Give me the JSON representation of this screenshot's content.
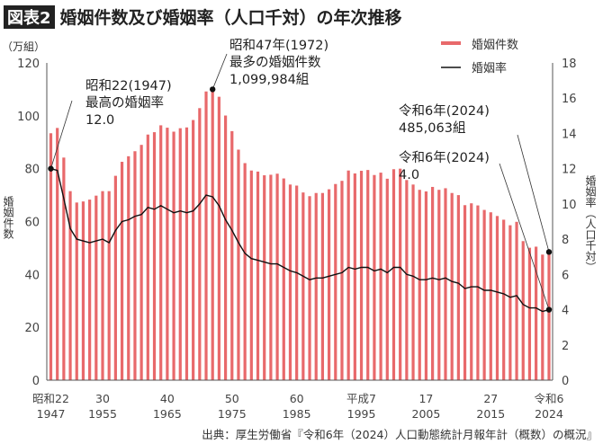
{
  "title": {
    "badge": "図表2",
    "text": "婚姻件数及び婚姻率（人口千対）の年次推移"
  },
  "source": "出典：厚生労働省『令和6年（2024）人口動態統計月報年計（概数）の概況』",
  "colors": {
    "bar": "#e8696b",
    "line": "#111111"
  },
  "chart_data": {
    "type": "bar+line",
    "left_axis": {
      "unit_label": "（万組）",
      "title": "婚姻件数",
      "range": [
        0,
        120
      ],
      "ticks": [
        "0",
        "20",
        "40",
        "60",
        "80",
        "100",
        "120"
      ]
    },
    "right_axis": {
      "title": "婚姻率（人口千対）",
      "range": [
        0,
        18
      ],
      "ticks": [
        "0",
        "2",
        "4",
        "6",
        "8",
        "10",
        "12",
        "14",
        "16",
        "18"
      ]
    },
    "x_ticks": [
      {
        "year": 1947,
        "era": "昭和22",
        "label": "1947"
      },
      {
        "year": 1955,
        "era": "30",
        "label": "1955"
      },
      {
        "year": 1965,
        "era": "40",
        "label": "1965"
      },
      {
        "year": 1975,
        "era": "50",
        "label": "1975"
      },
      {
        "year": 1985,
        "era": "60",
        "label": "1985"
      },
      {
        "year": 1995,
        "era": "平成7",
        "label": "1995"
      },
      {
        "year": 2005,
        "era": "17",
        "label": "2005"
      },
      {
        "year": 2015,
        "era": "27",
        "label": "2015"
      },
      {
        "year": 2024,
        "era": "令和6",
        "label": "2024"
      }
    ],
    "legend": {
      "position": "top-right",
      "items": [
        "婚姻件数",
        "婚姻率"
      ]
    },
    "years_start": 1947,
    "years_end": 2024,
    "series": [
      {
        "name": "婚姻件数",
        "type": "bar",
        "axis": "left",
        "values": [
          93.4,
          95.4,
          84.2,
          71.5,
          67.2,
          67.6,
          68.3,
          69.8,
          71.5,
          71.5,
          77.3,
          82.6,
          84.7,
          86.6,
          89.0,
          92.9,
          93.8,
          96.4,
          95.5,
          94.0,
          95.3,
          95.6,
          98.4,
          102.9,
          109.2,
          110.0,
          107.2,
          100.1,
          94.2,
          87.2,
          82.1,
          79.3,
          78.9,
          77.5,
          77.7,
          78.1,
          76.3,
          74.0,
          73.6,
          71.0,
          69.6,
          70.8,
          70.8,
          72.2,
          74.2,
          75.4,
          79.3,
          78.2,
          79.2,
          79.5,
          77.6,
          78.5,
          76.2,
          79.8,
          80.0,
          75.7,
          74.0,
          72.0,
          71.4,
          73.1,
          72.0,
          72.6,
          70.8,
          70.0,
          66.2,
          66.9,
          66.1,
          64.4,
          63.5,
          62.1,
          60.7,
          58.6,
          59.9,
          52.6,
          50.1,
          50.5,
          47.5,
          48.5
        ]
      },
      {
        "name": "婚姻率",
        "type": "line",
        "axis": "right",
        "values": [
          12.0,
          11.9,
          10.3,
          8.6,
          8.0,
          7.9,
          7.8,
          7.9,
          8.0,
          7.8,
          8.5,
          9.0,
          9.1,
          9.3,
          9.4,
          9.8,
          9.7,
          9.9,
          9.7,
          9.5,
          9.6,
          9.5,
          9.6,
          10.0,
          10.5,
          10.4,
          9.9,
          9.1,
          8.5,
          7.8,
          7.2,
          6.9,
          6.8,
          6.7,
          6.6,
          6.6,
          6.4,
          6.2,
          6.1,
          5.9,
          5.7,
          5.8,
          5.8,
          5.9,
          6.0,
          6.1,
          6.4,
          6.3,
          6.4,
          6.4,
          6.2,
          6.3,
          6.1,
          6.4,
          6.4,
          6.0,
          5.9,
          5.7,
          5.7,
          5.8,
          5.7,
          5.8,
          5.6,
          5.5,
          5.2,
          5.3,
          5.3,
          5.1,
          5.1,
          5.0,
          4.9,
          4.7,
          4.8,
          4.3,
          4.1,
          4.1,
          3.9,
          4.0
        ]
      }
    ],
    "annotations": [
      {
        "lines": [
          "昭和22(1947)",
          "最高の婚姻率",
          "12.0"
        ]
      },
      {
        "lines": [
          "昭和47年(1972)",
          "最多の婚姻件数",
          "1,099,984組"
        ]
      },
      {
        "lines": [
          "令和6年(2024)",
          "485,063組"
        ]
      },
      {
        "lines": [
          "令和6年(2024)",
          "4.0"
        ]
      }
    ]
  }
}
